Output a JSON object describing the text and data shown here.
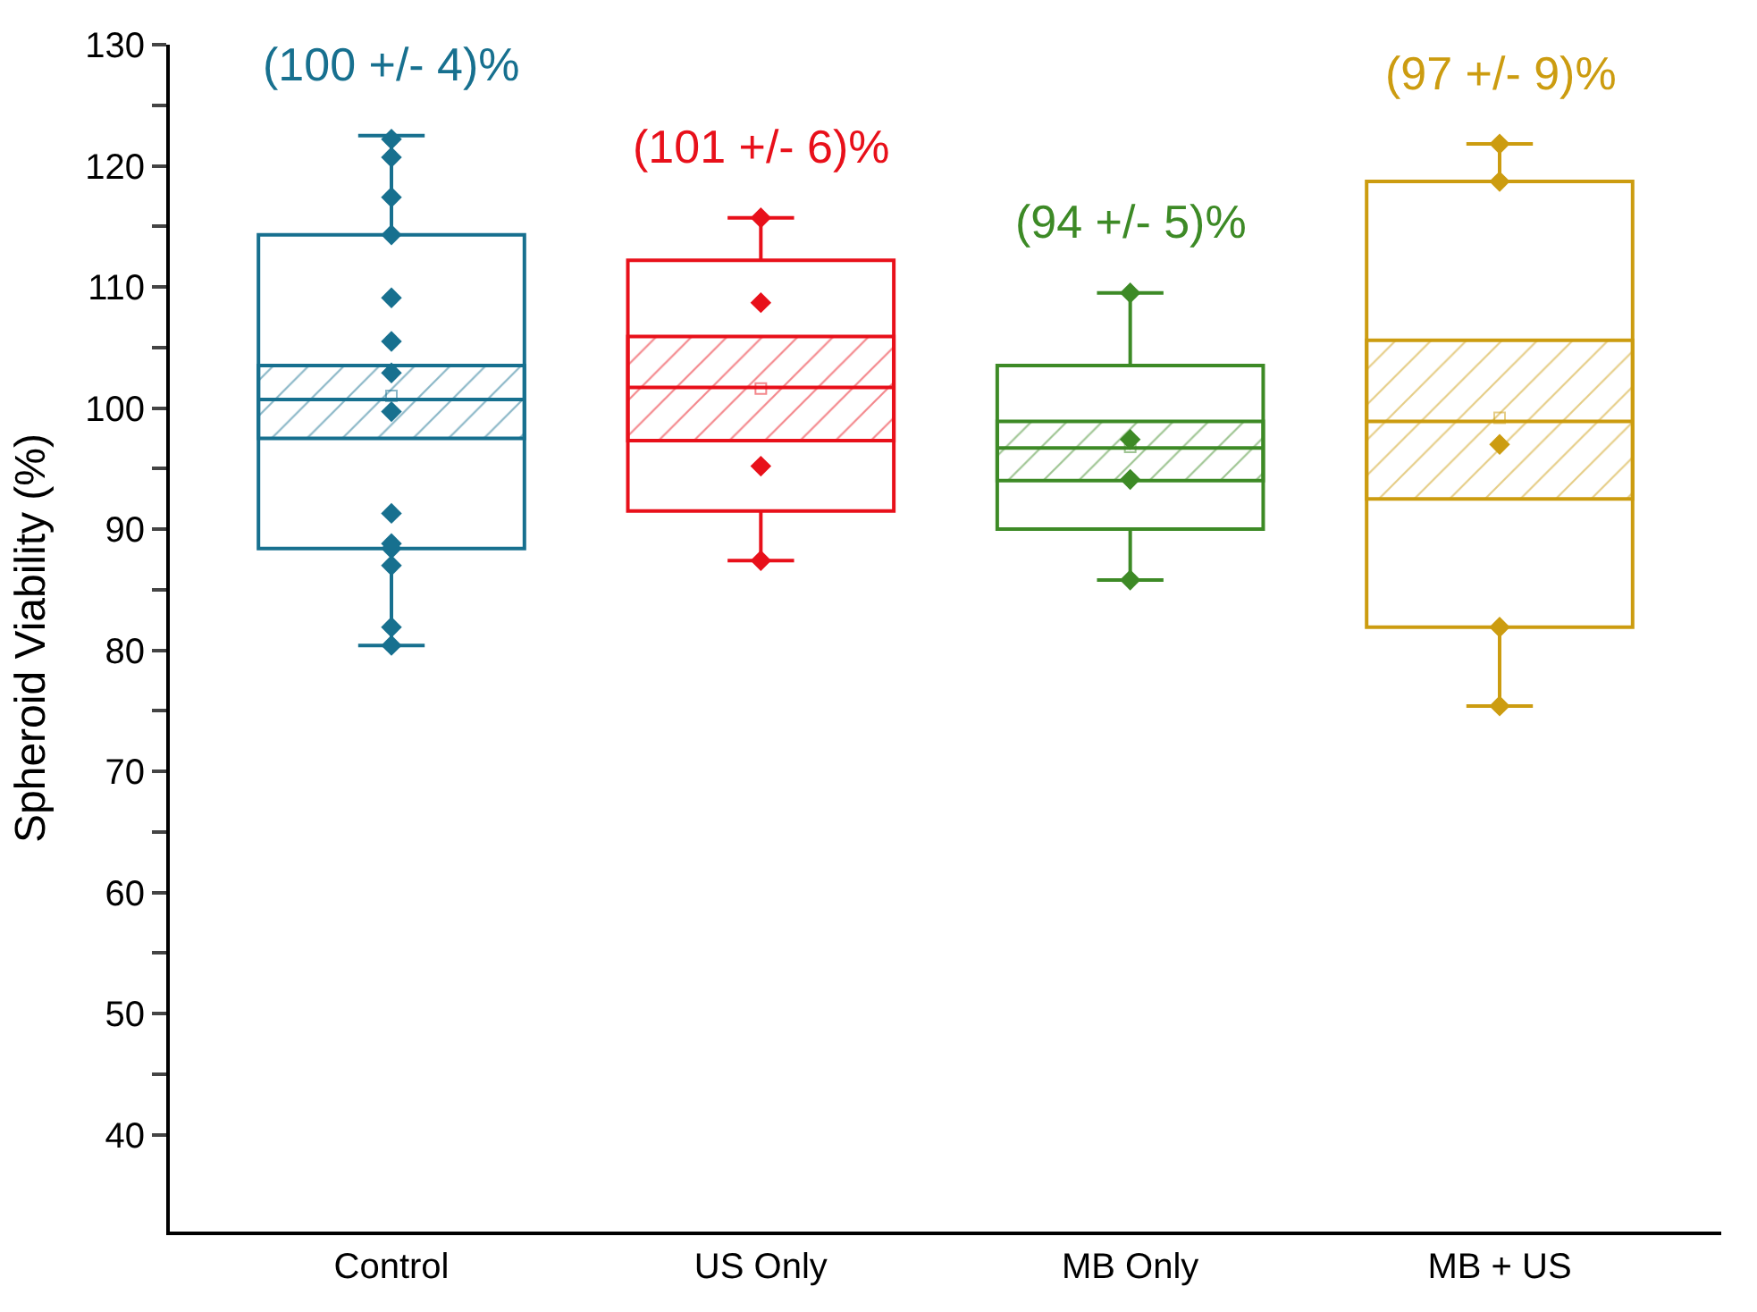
{
  "chart_data": {
    "type": "box",
    "ylabel": "Spheroid Viability (%)",
    "categories": [
      "Control",
      "US Only",
      "MB Only",
      "MB + US"
    ],
    "ylim": [
      32,
      130
    ],
    "yticks": [
      40,
      {
        "value": 45,
        "label": null
      },
      50,
      {
        "value": 55,
        "label": null
      },
      60,
      {
        "value": 65,
        "label": null
      },
      70,
      {
        "value": 75,
        "label": null
      },
      80,
      {
        "value": 85,
        "label": null
      },
      90,
      {
        "value": 95,
        "label": null
      },
      100,
      {
        "value": 105,
        "label": null
      },
      110,
      {
        "value": 115,
        "label": null
      },
      120,
      {
        "value": 125,
        "label": null
      },
      130
    ],
    "marker": "diamond",
    "series": [
      {
        "colors": [
          "#17708f",
          "#e8101a",
          "#3d8a26",
          "#cc9c10"
        ],
        "boxes": [
          {
            "low": 80.4,
            "q1": 88.4,
            "median": 100.7,
            "q3": 114.3,
            "high": 122.5,
            "mean": 101.0
          },
          {
            "low": 87.4,
            "q1": 91.5,
            "median": 101.7,
            "q3": 112.2,
            "high": 115.7,
            "mean": 101.6
          },
          {
            "low": 85.8,
            "q1": 90.0,
            "median": 96.7,
            "q3": 103.5,
            "high": 109.5,
            "mean": 96.8
          },
          {
            "low": 75.4,
            "q1": 81.9,
            "median": 98.9,
            "q3": 118.7,
            "high": 121.8,
            "mean": 99.2
          }
        ]
      },
      {
        "type": "bar",
        "colors": [
          "#17708f",
          "#e8101a",
          "#3d8a26",
          "#cc9c10"
        ],
        "base": [
          97.5,
          97.3,
          94.0,
          92.5
        ],
        "values": [
          6.0,
          8.6,
          4.9,
          13.1
        ]
      },
      {
        "type": "scatter",
        "color": "#17708f",
        "x": [
          "Control",
          "Control",
          "Control",
          "Control",
          "Control",
          "Control",
          "Control",
          "Control",
          "Control",
          "Control",
          "Control",
          "Control",
          "Control",
          "Control"
        ],
        "values": [
          122.2,
          120.7,
          117.4,
          114.3,
          109.1,
          105.5,
          102.9,
          99.7,
          91.3,
          88.8,
          88.4,
          87.0,
          81.9,
          80.4
        ]
      },
      {
        "type": "scatter",
        "color": "#e8101a",
        "x": [
          "US Only",
          "US Only",
          "US Only",
          "US Only"
        ],
        "values": [
          115.7,
          108.7,
          95.2,
          87.4
        ]
      },
      {
        "type": "scatter",
        "color": "#3d8a26",
        "x": [
          "MB Only",
          "MB Only",
          "MB Only",
          "MB Only"
        ],
        "values": [
          109.5,
          97.4,
          94.1,
          85.8
        ]
      },
      {
        "type": "scatter",
        "color": "#cc9c10",
        "x": [
          "MB + US",
          "MB + US",
          "MB + US",
          "MB + US",
          "MB + US"
        ],
        "values": [
          121.8,
          118.7,
          97.0,
          81.9,
          75.4
        ]
      }
    ],
    "annotations": [
      "(100 +/- 4)%",
      "(101 +/- 6)%",
      "(94 +/- 5)%",
      "(97 +/- 9)%"
    ]
  }
}
